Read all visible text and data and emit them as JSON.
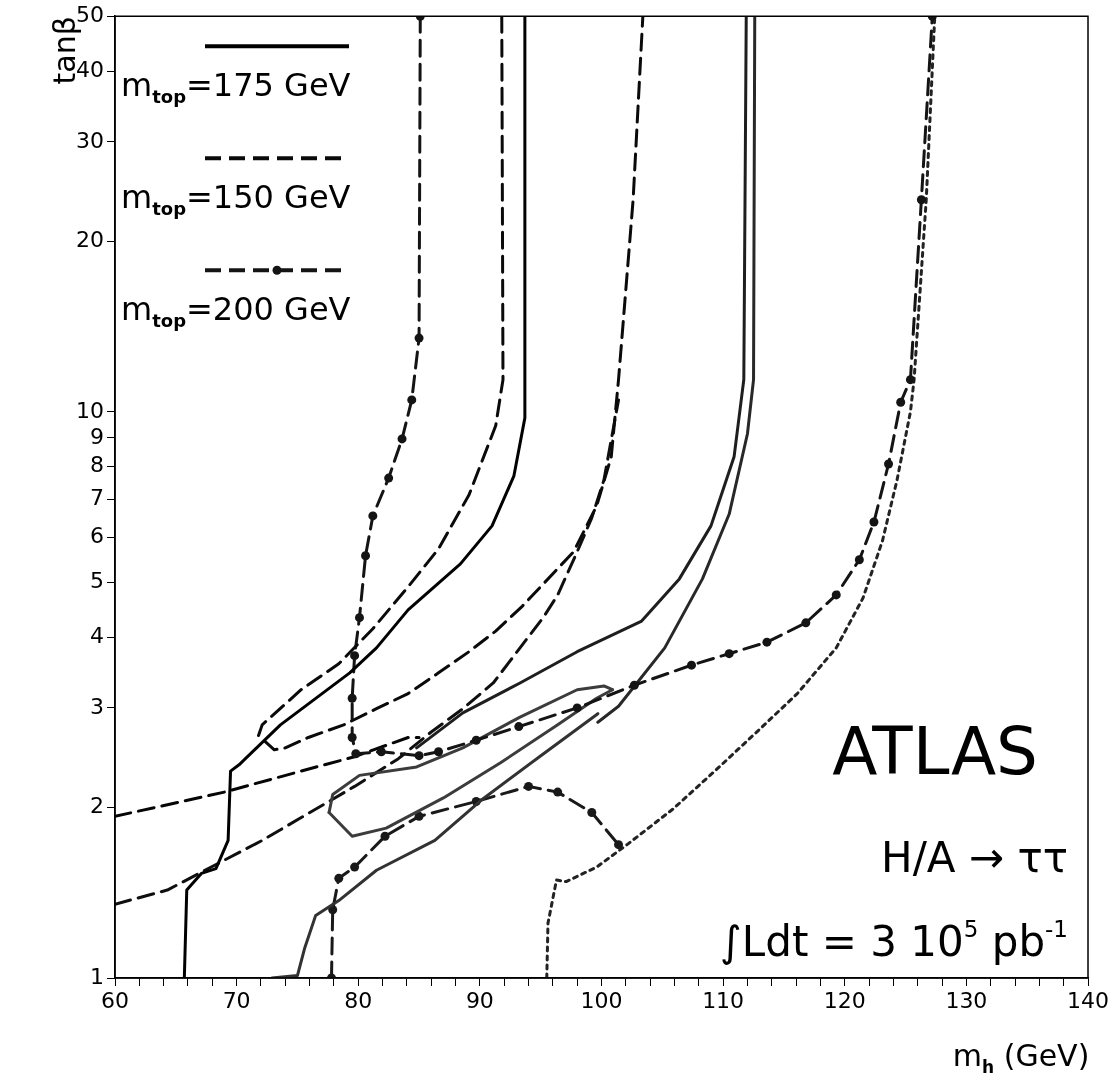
{
  "chart_data": {
    "type": "line",
    "xlabel": "m$_{h}$ (GeV)",
    "ylabel": "tanβ",
    "log": "y",
    "legend": "top left",
    "xlim": [
      60,
      140
    ],
    "ylim": [
      1,
      50
    ],
    "xticks": [
      60,
      {
        "value": 62,
        "label": null
      },
      {
        "value": 64,
        "label": null
      },
      {
        "value": 66,
        "label": null
      },
      {
        "value": 68,
        "label": null
      },
      70,
      {
        "value": 72,
        "label": null
      },
      {
        "value": 74,
        "label": null
      },
      {
        "value": 76,
        "label": null
      },
      {
        "value": 78,
        "label": null
      },
      80,
      {
        "value": 82,
        "label": null
      },
      {
        "value": 84,
        "label": null
      },
      {
        "value": 86,
        "label": null
      },
      {
        "value": 88,
        "label": null
      },
      90,
      {
        "value": 92,
        "label": null
      },
      {
        "value": 94,
        "label": null
      },
      {
        "value": 96,
        "label": null
      },
      {
        "value": 98,
        "label": null
      },
      100,
      {
        "value": 102,
        "label": null
      },
      {
        "value": 104,
        "label": null
      },
      {
        "value": 106,
        "label": null
      },
      {
        "value": 108,
        "label": null
      },
      110,
      {
        "value": 112,
        "label": null
      },
      {
        "value": 114,
        "label": null
      },
      {
        "value": 116,
        "label": null
      },
      {
        "value": 118,
        "label": null
      },
      120,
      {
        "value": 122,
        "label": null
      },
      {
        "value": 124,
        "label": null
      },
      {
        "value": 126,
        "label": null
      },
      {
        "value": 128,
        "label": null
      },
      130,
      {
        "value": 132,
        "label": null
      },
      {
        "value": 134,
        "label": null
      },
      {
        "value": 136,
        "label": null
      },
      {
        "value": 138,
        "label": null
      },
      140
    ],
    "yticks": [
      1,
      2,
      3,
      4,
      5,
      6,
      7,
      8,
      9,
      10,
      20,
      30,
      40,
      50
    ],
    "annotations": [
      "ATLAS",
      "H/A → ττ",
      "∫Ldt = 3 10$^{5}$ pb$^{-1}$"
    ],
    "series": [
      {
        "name": "m$_{top}$=175 GeV",
        "color": "#000000",
        "line_style": "solid",
        "x": [
          65.7,
          65.9,
          67.1,
          68.3,
          69.3,
          69.5,
          70.2,
          73.6,
          79.3,
          81.5,
          84.1,
          88.4,
          91.0,
          92.8,
          93.7,
          93.7
        ],
        "values": [
          1,
          1.43,
          1.53,
          1.56,
          1.75,
          2.32,
          2.38,
          2.8,
          3.46,
          3.83,
          4.47,
          5.39,
          6.29,
          7.71,
          9.76,
          50
        ]
      },
      {
        "name": "m$_{top}$=150 GeV",
        "color": "#0a0a0a",
        "line_style": "dashed",
        "x": [
          91.8,
          91.9,
          91.3,
          89.1,
          86.6,
          84.1,
          81.2,
          78.4,
          75.3,
          72.1,
          71.8,
          73.1,
          74.0,
          75.9,
          78.8,
          81.5,
          84.1,
          86.6,
          89.1,
          91.3,
          93.5,
          97.7,
          99.6,
          100.8,
          101.4,
          102.6,
          103.4
        ],
        "values": [
          50,
          11.4,
          9.45,
          7.13,
          5.73,
          4.91,
          4.14,
          3.59,
          3.23,
          2.8,
          2.68,
          2.53,
          2.55,
          2.66,
          2.8,
          2.99,
          3.18,
          3.46,
          3.77,
          4.1,
          4.54,
          5.66,
          6.82,
          8.33,
          11.4,
          23.7,
          50
        ]
      },
      {
        "name": "m$_{top}$=200 GeV",
        "color": "#141414",
        "line_style": "dashed",
        "marker": "circle",
        "x": [
          85.1,
          85.0,
          84.4,
          83.6,
          82.5,
          81.2,
          80.6,
          80.1,
          79.7,
          79.5,
          79.5,
          79.8,
          81.9,
          85.0,
          86.6,
          89.7,
          93.2,
          98.0,
          102.7,
          107.4,
          110.5,
          113.6,
          116.8,
          119.3,
          121.2,
          122.4,
          123.6,
          124.6,
          125.4,
          126.3,
          127.2
        ],
        "values": [
          50,
          13.5,
          10.5,
          8.96,
          7.64,
          6.55,
          5.57,
          4.33,
          3.71,
          3.12,
          2.66,
          2.49,
          2.51,
          2.47,
          2.51,
          2.63,
          2.78,
          3.0,
          3.29,
          3.57,
          3.74,
          3.92,
          4.24,
          4.75,
          5.48,
          6.39,
          8.09,
          10.4,
          11.4,
          23.7,
          50
        ]
      },
      {
        "color": "#1e1e1e",
        "line_style": "solid",
        "x": [
          111.9,
          111.8,
          111.7,
          110.9,
          109.0,
          106.4,
          103.3,
          98.0,
          93.3,
          88.6,
          84.8
        ],
        "values": [
          50,
          23.7,
          11.4,
          8.33,
          6.29,
          5.07,
          4.27,
          3.77,
          3.32,
          2.94,
          2.55
        ]
      },
      {
        "color": "#282828",
        "line_style": "solid",
        "x": [
          112.6,
          112.5,
          112.0,
          110.5,
          108.3,
          105.2,
          101.4,
          99.7
        ],
        "values": [
          50,
          11.4,
          9.15,
          6.6,
          5.07,
          3.83,
          3.02,
          2.83
        ]
      },
      {
        "color": "#323232",
        "line_style": "solid",
        "x": [
          72.9,
          75.0,
          75.6,
          76.5,
          78.4,
          81.5,
          86.3,
          90.1,
          94.9,
          99.7
        ],
        "values": [
          1,
          1.01,
          1.13,
          1.29,
          1.37,
          1.55,
          1.75,
          2.06,
          2.46,
          2.93
        ]
      },
      {
        "color": "#3c3c3c",
        "line_style": "solid",
        "x": [
          77.6,
          79.5,
          82.3,
          87.0,
          91.7,
          96.4,
          99.6,
          100.9
        ],
        "values": [
          1.96,
          1.78,
          1.84,
          2.08,
          2.4,
          2.8,
          3.12,
          3.23
        ]
      },
      {
        "color": "#3c3c3c",
        "line_style": "solid",
        "x": [
          77.6,
          77.9,
          80.1,
          84.8,
          88.6,
          93.3,
          98.0,
          100.2,
          100.9
        ],
        "values": [
          1.96,
          2.11,
          2.28,
          2.36,
          2.55,
          2.89,
          3.23,
          3.28,
          3.23
        ]
      },
      {
        "color": "#050505",
        "line_style": "dashed",
        "x": [
          60,
          69.0,
          75.3,
          79.7,
          84.1,
          85.0
        ],
        "values": [
          1.93,
          2.13,
          2.32,
          2.46,
          2.66,
          2.66
        ]
      },
      {
        "color": "#0f0f0f",
        "line_style": "dashed",
        "x": [
          60,
          64.3,
          72.1,
          79.7,
          83.3,
          86.0,
          88.6,
          91.1,
          93.3,
          95.2,
          96.4,
          98.0,
          99.2,
          100.2,
          101.4
        ],
        "values": [
          1.35,
          1.43,
          1.75,
          2.18,
          2.44,
          2.72,
          2.99,
          3.32,
          3.83,
          4.33,
          4.75,
          5.66,
          6.5,
          7.58,
          10.5
        ]
      },
      {
        "color": "#191919",
        "line_style": "dashed",
        "marker": "circle",
        "x": [
          77.8,
          77.9,
          78.4,
          79.7,
          82.2,
          85.0,
          89.7,
          94.0,
          96.4,
          99.2,
          101.4
        ],
        "values": [
          1,
          1.32,
          1.5,
          1.57,
          1.78,
          1.93,
          2.05,
          2.18,
          2.13,
          1.96,
          1.72
        ]
      },
      {
        "color": "#232323",
        "line_style": "dotted",
        "x": [
          95.5,
          95.6,
          96.3,
          97.1,
          99.6,
          102.1,
          105.9,
          109.5,
          113.0,
          116.1,
          119.3,
          121.5,
          123.1,
          124.3,
          125.4,
          125.7,
          126.7,
          127.4
        ],
        "values": [
          1,
          1.25,
          1.49,
          1.48,
          1.57,
          1.72,
          1.99,
          2.34,
          2.75,
          3.18,
          3.83,
          4.69,
          5.92,
          7.58,
          10.0,
          11.4,
          23.7,
          50
        ]
      }
    ]
  }
}
